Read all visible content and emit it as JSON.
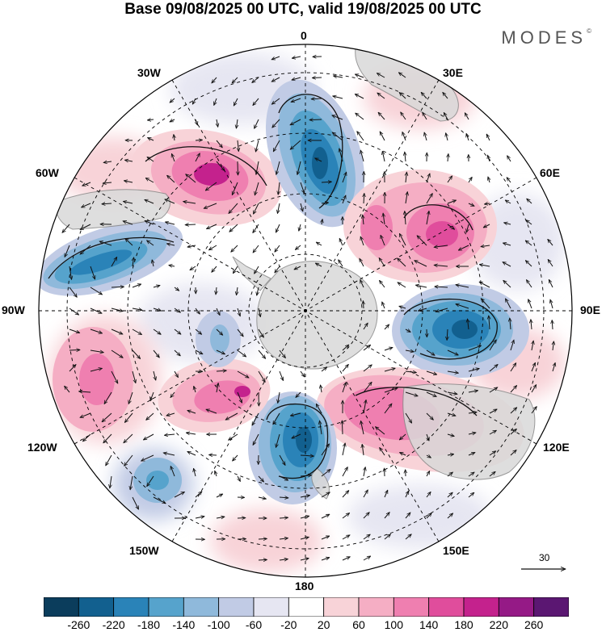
{
  "title": "Base 09/08/2025 00 UTC, valid 19/08/2025 00 UTC",
  "brand": "MODES",
  "brand_mark": "©",
  "longitude_labels": {
    "lon_0": "0",
    "lon_30e": "30E",
    "lon_60e": "60E",
    "lon_90e": "90E",
    "lon_120e": "120E",
    "lon_150e": "150E",
    "lon_180": "180",
    "lon_150w": "150W",
    "lon_120w": "120W",
    "lon_90w": "90W",
    "lon_60w": "60W",
    "lon_30w": "30W"
  },
  "reference_vector": "30",
  "colorbar": {
    "ticks": [
      "-260",
      "-220",
      "-180",
      "-140",
      "-100",
      "-60",
      "-20",
      "20",
      "60",
      "100",
      "140",
      "180",
      "220",
      "260"
    ],
    "colors": [
      "#0b3d5c",
      "#12608f",
      "#2a83b8",
      "#56a3cc",
      "#8fb9db",
      "#c1cbe5",
      "#e6e6f2",
      "#ffffff",
      "#f8d3d8",
      "#f5aec4",
      "#ef7fb0",
      "#e04d9c",
      "#c4228d",
      "#951a86",
      "#5b1772"
    ]
  },
  "map_colors": {
    "land": "#d9d9d9",
    "coast": "#888888",
    "grid": "#000000",
    "arrow": "#111111"
  }
}
